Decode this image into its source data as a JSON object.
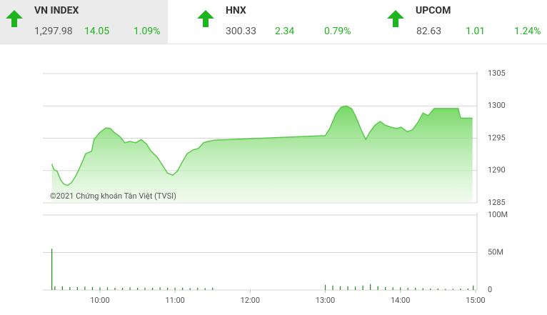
{
  "indices": [
    {
      "name": "VN INDEX",
      "value": "1,297.98",
      "change": "14.05",
      "percent": "1.09%"
    },
    {
      "name": "HNX",
      "value": "300.33",
      "change": "2.34",
      "percent": "0.79%"
    },
    {
      "name": "UPCOM",
      "value": "82.63",
      "change": "1.01",
      "percent": "1.24%"
    }
  ],
  "chart_data": [
    {
      "type": "area",
      "annotation": "©2021 Chứng khoán Tân Việt (TVSI)",
      "color": "#5cc94d",
      "grid": true,
      "xlim": [
        9.24,
        15.02
      ],
      "ylim": [
        1285,
        1305
      ],
      "yticks": [
        1285,
        1290,
        1295,
        1300,
        1305
      ],
      "x": [
        9.36,
        9.39,
        9.43,
        9.48,
        9.52,
        9.57,
        9.62,
        9.67,
        9.71,
        9.76,
        9.81,
        9.89,
        9.92,
        10.0,
        10.08,
        10.14,
        10.19,
        10.27,
        10.33,
        10.4,
        10.48,
        10.55,
        10.62,
        10.68,
        10.76,
        10.84,
        10.9,
        10.97,
        11.03,
        11.09,
        11.16,
        11.24,
        11.31,
        11.38,
        11.44,
        11.52,
        13.0,
        13.06,
        13.14,
        13.21,
        13.28,
        13.35,
        13.4,
        13.47,
        13.54,
        13.59,
        13.66,
        13.73,
        13.8,
        13.88,
        13.95,
        14.01,
        14.09,
        14.16,
        14.23,
        14.3,
        14.37,
        14.45,
        14.52,
        14.61,
        14.71,
        14.77,
        14.8,
        14.9,
        14.96
      ],
      "values": [
        1291.0,
        1290.1,
        1289.9,
        1288.5,
        1287.9,
        1287.7,
        1288.1,
        1289.0,
        1289.9,
        1291.2,
        1292.6,
        1293.0,
        1294.8,
        1295.9,
        1296.6,
        1296.5,
        1295.9,
        1295.2,
        1294.3,
        1294.5,
        1294.3,
        1294.8,
        1294.1,
        1293.0,
        1292.1,
        1290.7,
        1289.6,
        1289.3,
        1289.9,
        1291.2,
        1292.6,
        1293.2,
        1293.4,
        1294.3,
        1294.5,
        1294.7,
        1295.4,
        1296.5,
        1298.7,
        1299.8,
        1300.0,
        1299.6,
        1298.5,
        1296.5,
        1294.8,
        1295.9,
        1297.0,
        1297.6,
        1297.0,
        1296.7,
        1296.5,
        1296.7,
        1296.0,
        1296.3,
        1297.4,
        1298.9,
        1298.5,
        1299.6,
        1299.6,
        1299.6,
        1299.6,
        1299.6,
        1298.1,
        1298.1,
        1298.1
      ]
    },
    {
      "type": "bar",
      "color": "#1e8a1e",
      "grid": true,
      "xlim": [
        9.24,
        15.02
      ],
      "ylim": [
        0,
        100000000
      ],
      "yticks": [
        0,
        {
          "value": 50000000,
          "label": "50M"
        },
        {
          "value": 100000000,
          "label": "100M"
        }
      ],
      "xticks": [
        {
          "value": 10,
          "label": "10:00"
        },
        {
          "value": 11,
          "label": "11:00"
        },
        {
          "value": 12,
          "label": "12:00"
        },
        {
          "value": 13,
          "label": "13:00"
        },
        {
          "value": 14,
          "label": "14:00"
        },
        {
          "value": 15,
          "label": "15:00"
        }
      ],
      "x": [
        9.36,
        9.4,
        9.5,
        9.6,
        9.7,
        9.8,
        9.9,
        10.0,
        10.1,
        10.2,
        10.3,
        10.4,
        10.5,
        10.6,
        10.7,
        10.8,
        10.9,
        11.0,
        11.1,
        11.2,
        11.3,
        11.4,
        11.5,
        13.0,
        13.1,
        13.2,
        13.3,
        13.4,
        13.5,
        13.6,
        13.7,
        13.8,
        13.9,
        14.0,
        14.1,
        14.2,
        14.3,
        14.4,
        14.5,
        14.6,
        14.7,
        14.8,
        14.9,
        14.97
      ],
      "values": [
        55000000,
        5000000,
        5000000,
        4000000,
        4000000,
        4500000,
        4000000,
        3500000,
        3500000,
        3000000,
        3000000,
        3500000,
        3000000,
        3000000,
        3000000,
        3500000,
        3000000,
        3000000,
        3000000,
        2500000,
        3000000,
        2500000,
        3000000,
        7000000,
        6000000,
        5000000,
        5000000,
        4500000,
        6000000,
        8000000,
        5000000,
        4000000,
        3500000,
        3500000,
        3000000,
        3000000,
        2500000,
        2000000,
        2000000,
        1500000,
        1500000,
        2000000,
        2000000,
        6000000
      ]
    }
  ]
}
